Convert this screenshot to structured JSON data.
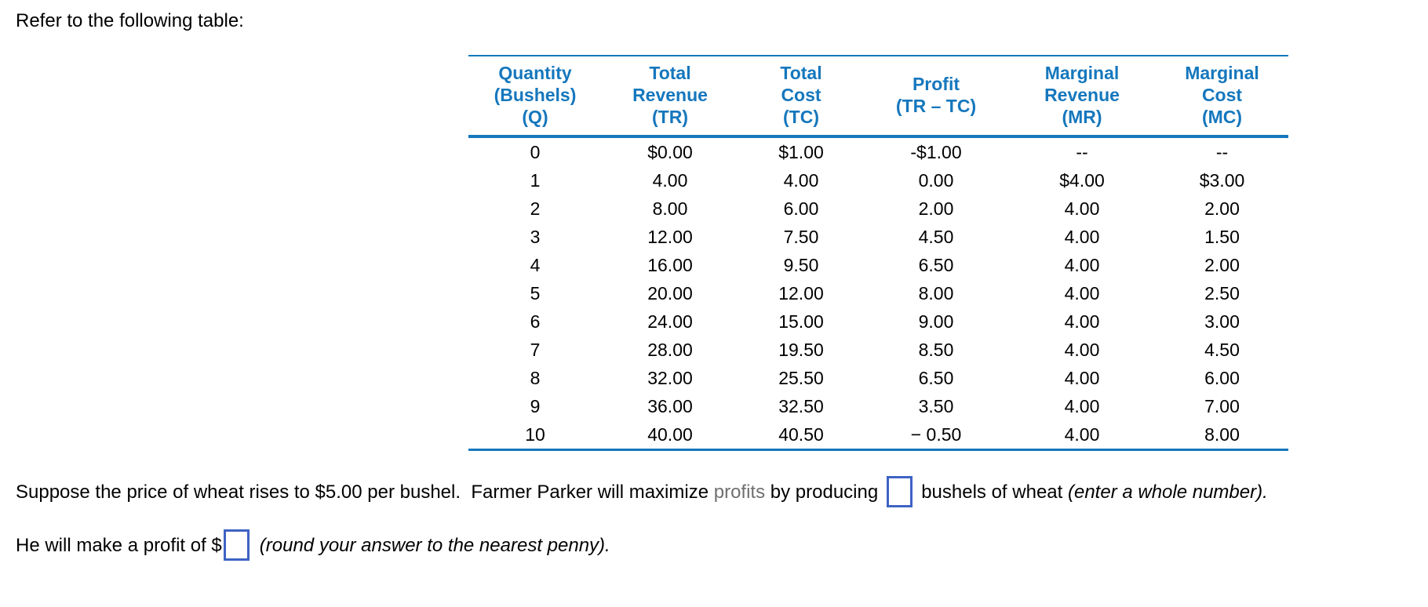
{
  "page": {
    "intro": "Refer to the following table:"
  },
  "colors": {
    "table_blue": "#1577bd",
    "input_border_blue": "#3e63c4",
    "glossary_gray": "#6f6f6f",
    "body_text": "#000000"
  },
  "table": {
    "headers": [
      "Quantity\n(Bushels)\n(Q)",
      "Total\nRevenue\n(TR)",
      "Total\nCost\n(TC)",
      "Profit\n(TR – TC)",
      "Marginal\nRevenue\n(MR)",
      "Marginal\nCost\n(MC)"
    ],
    "rows": [
      [
        "0",
        "$0.00",
        "$1.00",
        "-$1.00",
        "--",
        "--"
      ],
      [
        "1",
        "4.00",
        "4.00",
        "0.00",
        "$4.00",
        "$3.00"
      ],
      [
        "2",
        "8.00",
        "6.00",
        "2.00",
        "4.00",
        "2.00"
      ],
      [
        "3",
        "12.00",
        "7.50",
        "4.50",
        "4.00",
        "1.50"
      ],
      [
        "4",
        "16.00",
        "9.50",
        "6.50",
        "4.00",
        "2.00"
      ],
      [
        "5",
        "20.00",
        "12.00",
        "8.00",
        "4.00",
        "2.50"
      ],
      [
        "6",
        "24.00",
        "15.00",
        "9.00",
        "4.00",
        "3.00"
      ],
      [
        "7",
        "28.00",
        "19.50",
        "8.50",
        "4.00",
        "4.50"
      ],
      [
        "8",
        "32.00",
        "25.50",
        "6.50",
        "4.00",
        "6.00"
      ],
      [
        "9",
        "36.00",
        "32.50",
        "3.50",
        "4.00",
        "7.00"
      ],
      [
        "10",
        "40.00",
        "40.50",
        "− 0.50",
        "4.00",
        "8.00"
      ]
    ]
  },
  "questions": {
    "q1": {
      "text_before_link": "Suppose the price of wheat rises to $5.00 per bushel.  Farmer Parker will maximize ",
      "glossary_term": "profits",
      "text_after_link": " by producing",
      "input_value": "",
      "text_after_input": "bushels of wheat ",
      "italic_note": "(enter a whole number)."
    },
    "q2": {
      "text_before_input": "He will make a profit of $",
      "input_value": "",
      "italic_note": "(round your answer to the nearest penny)."
    }
  }
}
